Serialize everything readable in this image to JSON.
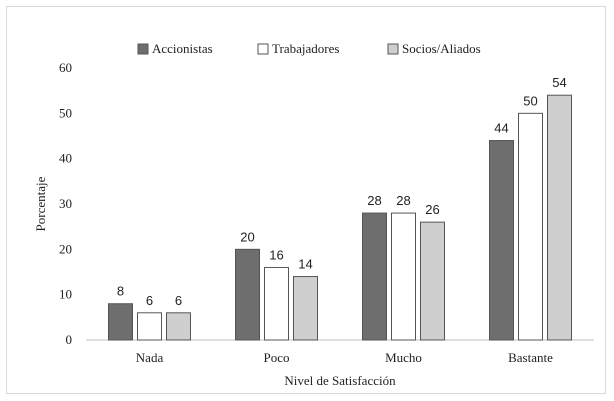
{
  "chart_data": {
    "type": "bar",
    "categories": [
      "Nada",
      "Poco",
      "Mucho",
      "Bastante"
    ],
    "series": [
      {
        "name": "Accionistas",
        "values": [
          8,
          20,
          28,
          44
        ],
        "color": "#6e6e6e"
      },
      {
        "name": "Trabajadores",
        "values": [
          6,
          16,
          28,
          50
        ],
        "color": "#ffffff"
      },
      {
        "name": "Socios/Aliados",
        "values": [
          6,
          14,
          26,
          54
        ],
        "color": "#cfcfcf"
      }
    ],
    "xlabel": "Nivel de Satisfacción",
    "ylabel": "Porcentaje",
    "ylim": [
      0,
      60
    ],
    "yticks": [
      0,
      10,
      20,
      30,
      40,
      50,
      60
    ],
    "grid": false,
    "legend_position": "top-center",
    "data_labels": true
  }
}
